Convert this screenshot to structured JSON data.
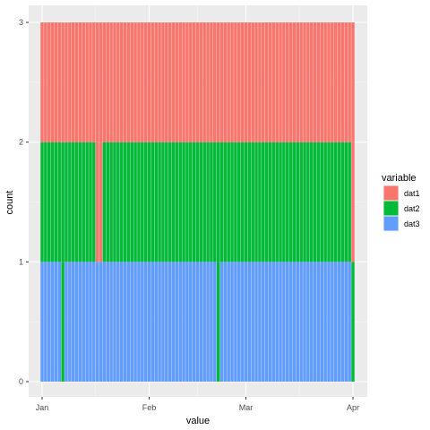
{
  "chart_data": {
    "type": "bar",
    "stacked": true,
    "xlabel": "value",
    "ylabel": "count",
    "x_ticks": [
      "Jan",
      "Feb",
      "Mar",
      "Apr"
    ],
    "x_range": [
      "2021-01-01",
      "2021-04-01"
    ],
    "ylim": [
      0,
      3
    ],
    "y_ticks": [
      0,
      1,
      2,
      3
    ],
    "grid": true,
    "panel_background": "#EBEBEB",
    "legend_title": "variable",
    "legend_position": "right",
    "stack_order": [
      "dat3",
      "dat2",
      "dat1"
    ],
    "series": [
      {
        "name": "dat1",
        "color": "#F8766D"
      },
      {
        "name": "dat2",
        "color": "#00BA38"
      },
      {
        "name": "dat3",
        "color": "#619CFF"
      }
    ],
    "categories": [
      "2021-01-01",
      "2021-01-02",
      "2021-01-03",
      "2021-01-04",
      "2021-01-05",
      "2021-01-06",
      "2021-01-07",
      "2021-01-08",
      "2021-01-09",
      "2021-01-10",
      "2021-01-11",
      "2021-01-12",
      "2021-01-13",
      "2021-01-14",
      "2021-01-15",
      "2021-01-16",
      "2021-01-17",
      "2021-01-18",
      "2021-01-19",
      "2021-01-20",
      "2021-01-21",
      "2021-01-22",
      "2021-01-23",
      "2021-01-24",
      "2021-01-25",
      "2021-01-26",
      "2021-01-27",
      "2021-01-28",
      "2021-01-29",
      "2021-01-30",
      "2021-01-31",
      "2021-02-01",
      "2021-02-02",
      "2021-02-03",
      "2021-02-04",
      "2021-02-05",
      "2021-02-06",
      "2021-02-07",
      "2021-02-08",
      "2021-02-09",
      "2021-02-10",
      "2021-02-11",
      "2021-02-12",
      "2021-02-13",
      "2021-02-14",
      "2021-02-15",
      "2021-02-16",
      "2021-02-17",
      "2021-02-18",
      "2021-02-19",
      "2021-02-20",
      "2021-02-21",
      "2021-02-22",
      "2021-02-23",
      "2021-02-24",
      "2021-02-25",
      "2021-02-26",
      "2021-02-27",
      "2021-02-28",
      "2021-03-01",
      "2021-03-02",
      "2021-03-03",
      "2021-03-04",
      "2021-03-05",
      "2021-03-06",
      "2021-03-07",
      "2021-03-08",
      "2021-03-09",
      "2021-03-10",
      "2021-03-11",
      "2021-03-12",
      "2021-03-13",
      "2021-03-14",
      "2021-03-15",
      "2021-03-16",
      "2021-03-17",
      "2021-03-18",
      "2021-03-19",
      "2021-03-20",
      "2021-03-21",
      "2021-03-22",
      "2021-03-23",
      "2021-03-24",
      "2021-03-25",
      "2021-03-26",
      "2021-03-27",
      "2021-03-28",
      "2021-03-29",
      "2021-03-30",
      "2021-03-31",
      "2021-04-01"
    ],
    "stacks": [
      [
        "dat3",
        "dat2",
        "dat1"
      ],
      [
        "dat3",
        "dat2",
        "dat1"
      ],
      [
        "dat3",
        "dat2",
        "dat1"
      ],
      [
        "dat3",
        "dat2",
        "dat1"
      ],
      [
        "dat3",
        "dat2",
        "dat1"
      ],
      [
        "dat3",
        "dat2",
        "dat1"
      ],
      [
        "dat2",
        "dat2",
        "dat1"
      ],
      [
        "dat3",
        "dat2",
        "dat1"
      ],
      [
        "dat3",
        "dat2",
        "dat1"
      ],
      [
        "dat3",
        "dat2",
        "dat1"
      ],
      [
        "dat3",
        "dat2",
        "dat1"
      ],
      [
        "dat3",
        "dat2",
        "dat1"
      ],
      [
        "dat3",
        "dat2",
        "dat1"
      ],
      [
        "dat3",
        "dat2",
        "dat1"
      ],
      [
        "dat3",
        "dat2",
        "dat1"
      ],
      [
        "dat3",
        "dat2",
        "dat1"
      ],
      [
        "dat3",
        "dat1",
        "dat1"
      ],
      [
        "dat3",
        "dat1",
        "dat1"
      ],
      [
        "dat3",
        "dat2",
        "dat1"
      ],
      [
        "dat3",
        "dat2",
        "dat1"
      ],
      [
        "dat3",
        "dat2",
        "dat1"
      ],
      [
        "dat3",
        "dat2",
        "dat1"
      ],
      [
        "dat3",
        "dat2",
        "dat1"
      ],
      [
        "dat3",
        "dat2",
        "dat1"
      ],
      [
        "dat3",
        "dat2",
        "dat1"
      ],
      [
        "dat3",
        "dat2",
        "dat1"
      ],
      [
        "dat3",
        "dat2",
        "dat1"
      ],
      [
        "dat3",
        "dat2",
        "dat1"
      ],
      [
        "dat3",
        "dat2",
        "dat1"
      ],
      [
        "dat3",
        "dat2",
        "dat1"
      ],
      [
        "dat3",
        "dat2",
        "dat1"
      ],
      [
        "dat3",
        "dat2",
        "dat1"
      ],
      [
        "dat3",
        "dat2",
        "dat1"
      ],
      [
        "dat3",
        "dat2",
        "dat1"
      ],
      [
        "dat3",
        "dat2",
        "dat1"
      ],
      [
        "dat3",
        "dat2",
        "dat1"
      ],
      [
        "dat3",
        "dat2",
        "dat1"
      ],
      [
        "dat3",
        "dat2",
        "dat1"
      ],
      [
        "dat3",
        "dat2",
        "dat1"
      ],
      [
        "dat3",
        "dat2",
        "dat1"
      ],
      [
        "dat3",
        "dat2",
        "dat1"
      ],
      [
        "dat3",
        "dat2",
        "dat1"
      ],
      [
        "dat3",
        "dat2",
        "dat1"
      ],
      [
        "dat3",
        "dat2",
        "dat1"
      ],
      [
        "dat3",
        "dat2",
        "dat1"
      ],
      [
        "dat3",
        "dat2",
        "dat1"
      ],
      [
        "dat3",
        "dat2",
        "dat1"
      ],
      [
        "dat3",
        "dat2",
        "dat1"
      ],
      [
        "dat3",
        "dat2",
        "dat1"
      ],
      [
        "dat3",
        "dat2",
        "dat1"
      ],
      [
        "dat3",
        "dat2",
        "dat1"
      ],
      [
        "dat2",
        "dat2",
        "dat1"
      ],
      [
        "dat3",
        "dat2",
        "dat1"
      ],
      [
        "dat3",
        "dat2",
        "dat1"
      ],
      [
        "dat3",
        "dat2",
        "dat1"
      ],
      [
        "dat3",
        "dat2",
        "dat1"
      ],
      [
        "dat3",
        "dat2",
        "dat1"
      ],
      [
        "dat3",
        "dat2",
        "dat1"
      ],
      [
        "dat3",
        "dat2",
        "dat1"
      ],
      [
        "dat3",
        "dat2",
        "dat1"
      ],
      [
        "dat3",
        "dat2",
        "dat1"
      ],
      [
        "dat3",
        "dat2",
        "dat1"
      ],
      [
        "dat3",
        "dat2",
        "dat1"
      ],
      [
        "dat3",
        "dat2",
        "dat1"
      ],
      [
        "dat3",
        "dat2",
        "dat1"
      ],
      [
        "dat3",
        "dat2",
        "dat1"
      ],
      [
        "dat3",
        "dat2",
        "dat1"
      ],
      [
        "dat3",
        "dat2",
        "dat1"
      ],
      [
        "dat3",
        "dat2",
        "dat1"
      ],
      [
        "dat3",
        "dat2",
        "dat1"
      ],
      [
        "dat3",
        "dat2",
        "dat1"
      ],
      [
        "dat3",
        "dat2",
        "dat1"
      ],
      [
        "dat3",
        "dat2",
        "dat1"
      ],
      [
        "dat3",
        "dat2",
        "dat1"
      ],
      [
        "dat3",
        "dat2",
        "dat1"
      ],
      [
        "dat3",
        "dat2",
        "dat1"
      ],
      [
        "dat3",
        "dat2",
        "dat1"
      ],
      [
        "dat3",
        "dat2",
        "dat1"
      ],
      [
        "dat3",
        "dat2",
        "dat1"
      ],
      [
        "dat3",
        "dat2",
        "dat1"
      ],
      [
        "dat3",
        "dat2",
        "dat1"
      ],
      [
        "dat3",
        "dat2",
        "dat1"
      ],
      [
        "dat3",
        "dat2",
        "dat1"
      ],
      [
        "dat3",
        "dat2",
        "dat1"
      ],
      [
        "dat3",
        "dat2",
        "dat1"
      ],
      [
        "dat3",
        "dat2",
        "dat1"
      ],
      [
        "dat3",
        "dat2",
        "dat1"
      ],
      [
        "dat3",
        "dat2",
        "dat1"
      ],
      [
        "dat3",
        "dat2",
        "dat1"
      ],
      [
        "dat3",
        "dat2",
        "dat1"
      ],
      [
        "dat2",
        "dat1",
        "dat1"
      ]
    ]
  }
}
